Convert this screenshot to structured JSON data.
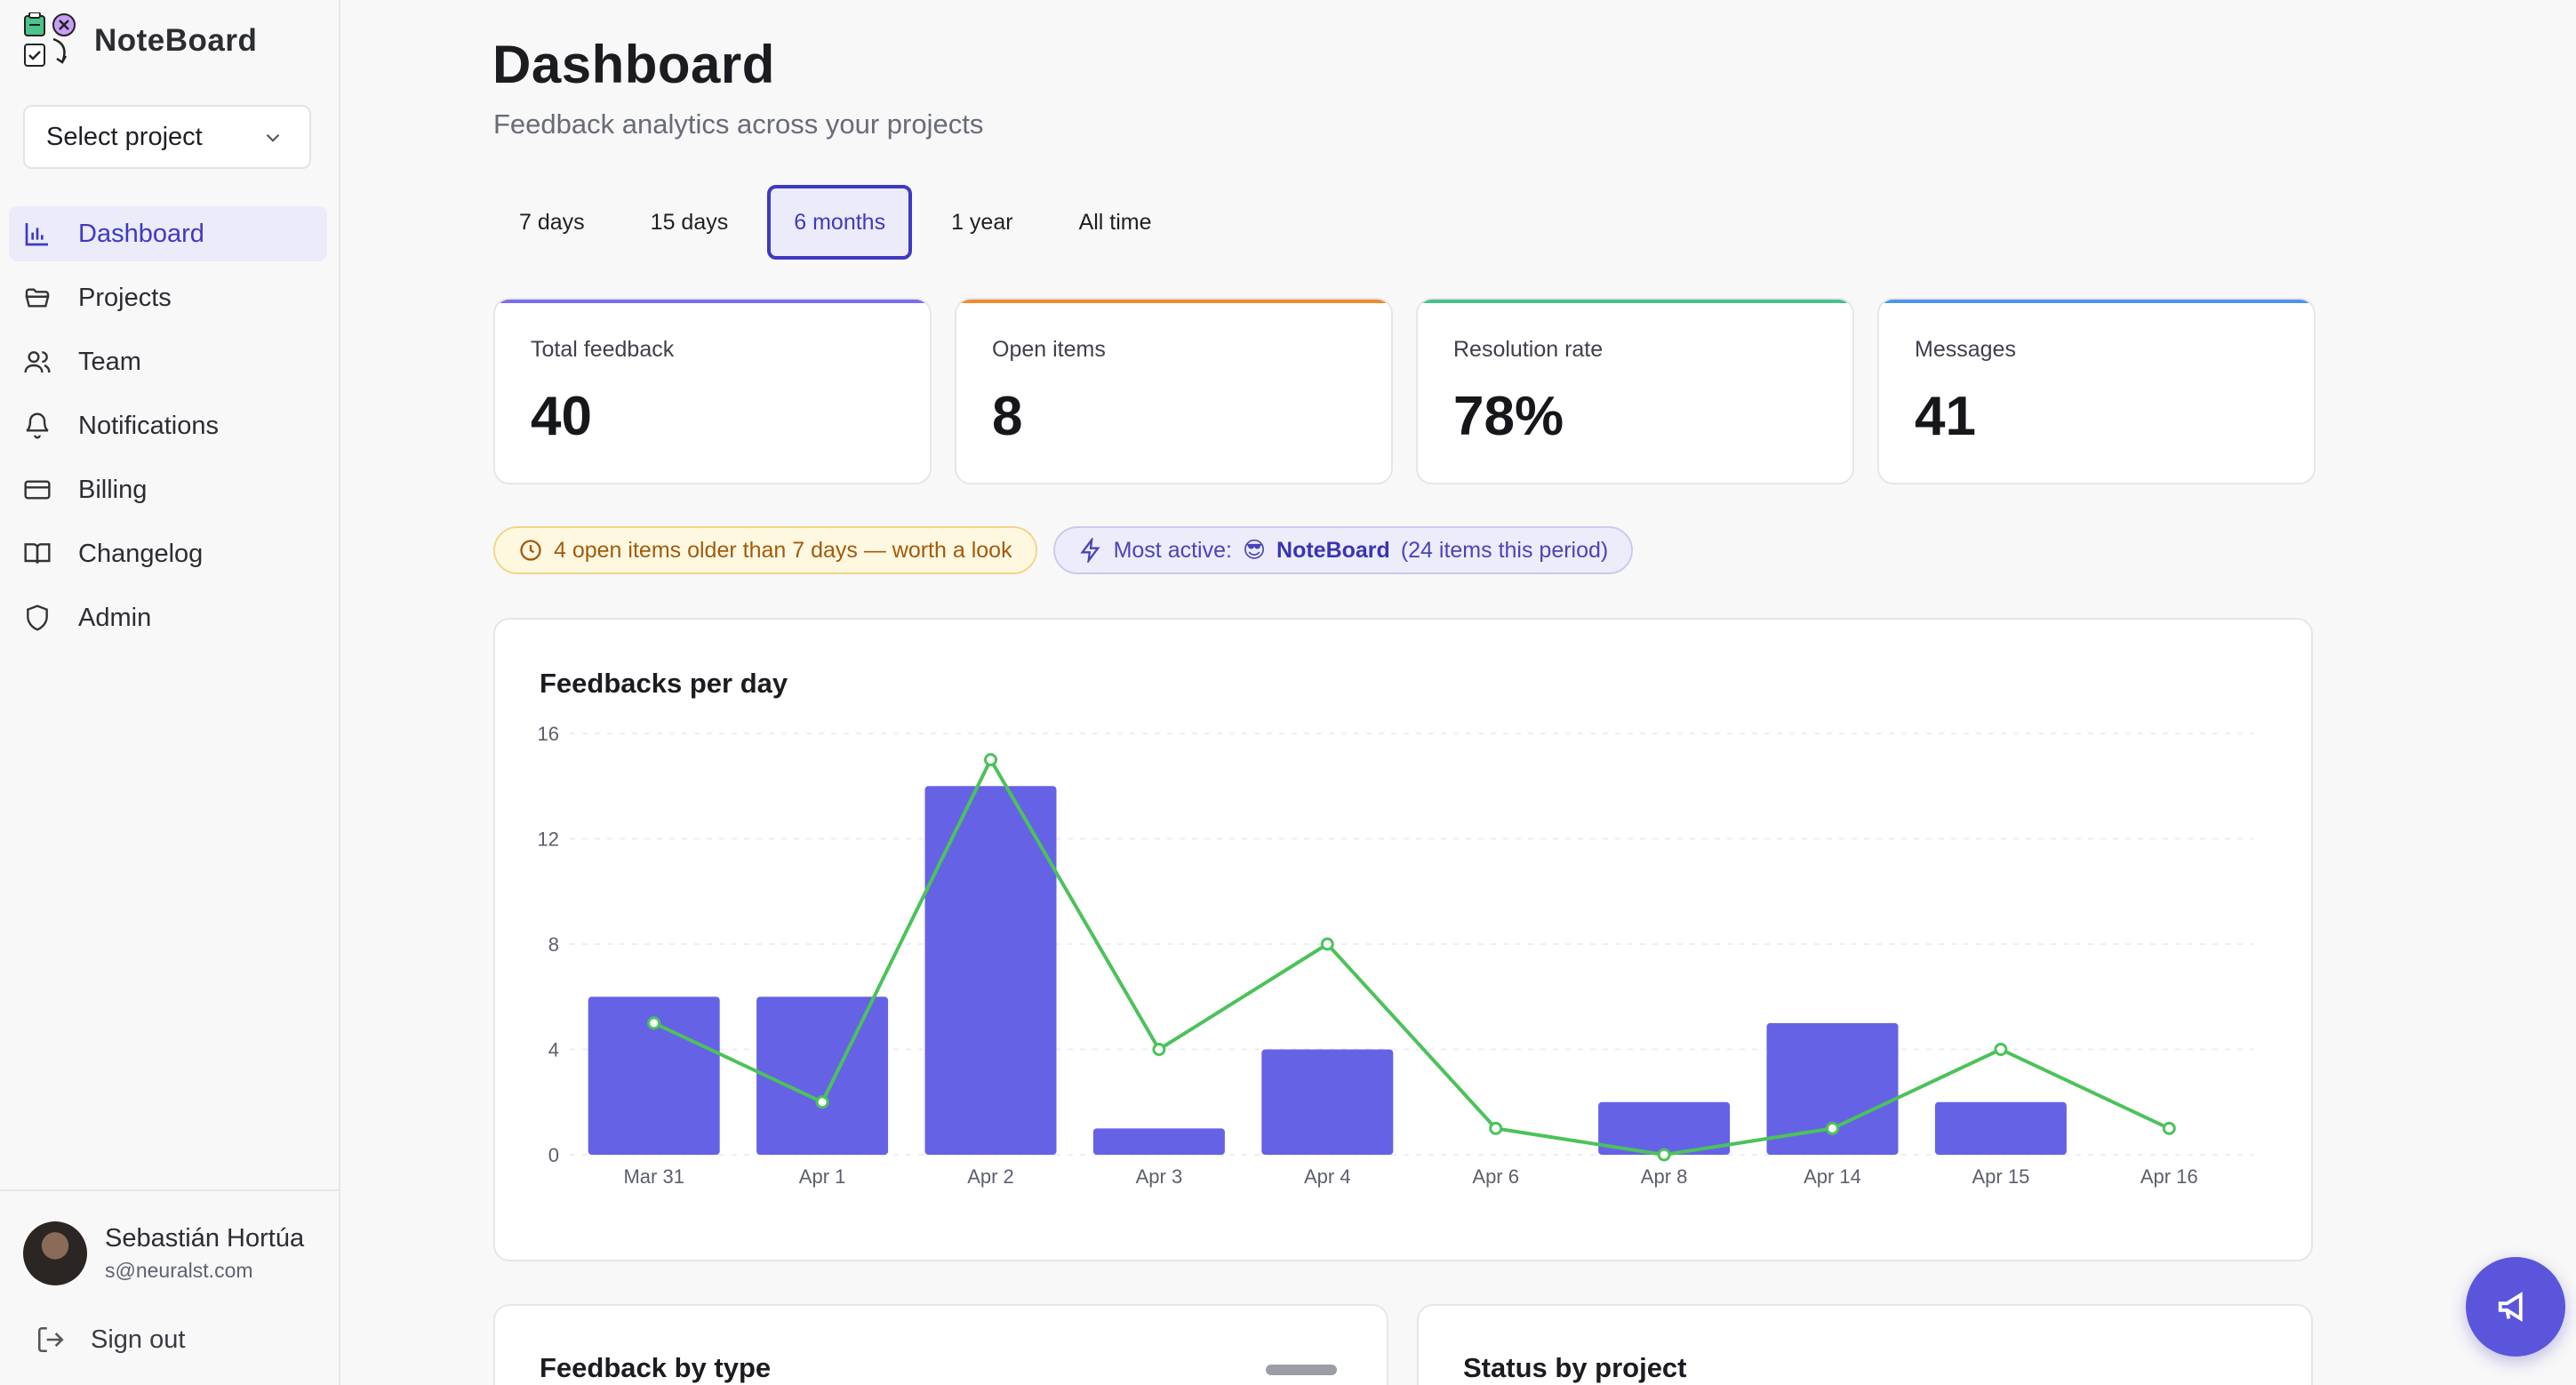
{
  "brand": {
    "name": "NoteBoard"
  },
  "project_select": {
    "value": "Select project"
  },
  "nav": [
    {
      "label": "Dashboard",
      "icon": "bar-chart-icon",
      "active": true
    },
    {
      "label": "Projects",
      "icon": "folder-icon"
    },
    {
      "label": "Team",
      "icon": "users-icon"
    },
    {
      "label": "Notifications",
      "icon": "bell-icon"
    },
    {
      "label": "Billing",
      "icon": "credit-card-icon"
    },
    {
      "label": "Changelog",
      "icon": "book-icon"
    },
    {
      "label": "Admin",
      "icon": "shield-icon"
    }
  ],
  "user": {
    "name": "Sebastián Hortúa",
    "email": "s@neuralst.com"
  },
  "signout": {
    "label": "Sign out"
  },
  "header": {
    "title": "Dashboard",
    "subtitle": "Feedback analytics across your projects"
  },
  "ranges": [
    {
      "label": "7 days"
    },
    {
      "label": "15 days"
    },
    {
      "label": "6 months",
      "active": true
    },
    {
      "label": "1 year"
    },
    {
      "label": "All time"
    }
  ],
  "kpis": [
    {
      "label": "Total feedback",
      "value": "40",
      "accent": "#7b6cf0"
    },
    {
      "label": "Open items",
      "value": "8",
      "accent": "#f08a2b"
    },
    {
      "label": "Resolution rate",
      "value": "78%",
      "accent": "#45c18a"
    },
    {
      "label": "Messages",
      "value": "41",
      "accent": "#4f93e8"
    }
  ],
  "alerts": {
    "warn_text": "4 open items older than 7 days — worth a look",
    "info_prefix": "Most active:",
    "info_emoji": "😎",
    "info_project": "NoteBoard",
    "info_suffix": "(24 items this period)"
  },
  "chart_data": {
    "type": "bar",
    "title": "Feedbacks per day",
    "categories": [
      "Mar 31",
      "Apr 1",
      "Apr 2",
      "Apr 3",
      "Apr 4",
      "Apr 6",
      "Apr 8",
      "Apr 14",
      "Apr 15",
      "Apr 16"
    ],
    "series": [
      {
        "type": "bar",
        "values": [
          6,
          6,
          14,
          1,
          4,
          0,
          2,
          5,
          2,
          0
        ],
        "color": "#6562e6"
      },
      {
        "type": "line",
        "values": [
          5,
          2,
          15,
          4,
          8,
          1,
          0,
          1,
          4,
          1
        ],
        "color": "#4cc25a"
      }
    ],
    "yticks": [
      0,
      4,
      8,
      12,
      16
    ],
    "ylim": [
      0,
      16
    ],
    "grid": true
  },
  "bottom_cards": {
    "left_title": "Feedback by type",
    "right_title": "Status by project"
  },
  "fab": {
    "icon": "megaphone-icon"
  }
}
